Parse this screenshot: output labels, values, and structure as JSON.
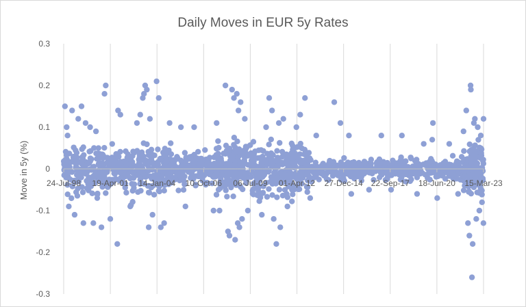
{
  "chart_data": {
    "type": "scatter",
    "title": "Daily Moves in EUR 5y Rates",
    "xlabel": "",
    "ylabel": "Move in 5y (%)",
    "x_tick_labels": [
      "24-Jul-98",
      "19-Apr-01",
      "14-Jan-04",
      "10-Oct-06",
      "06-Jul-09",
      "01-Apr-12",
      "27-Dec-14",
      "22-Sep-17",
      "18-Jun-20",
      "15-Mar-23"
    ],
    "x_tick_dates": [
      "1998-07-24",
      "2001-04-19",
      "2004-01-14",
      "2006-10-10",
      "2009-07-06",
      "2012-04-01",
      "2014-12-27",
      "2017-09-22",
      "2020-06-18",
      "2023-03-15"
    ],
    "xlim": [
      "1998-07-24",
      "2023-03-15"
    ],
    "y_ticks": [
      -0.3,
      -0.2,
      -0.1,
      0,
      0.1,
      0.2,
      0.3
    ],
    "y_tick_labels": [
      "-0.3",
      "-0.2",
      "-0.1",
      "0",
      "0.1",
      "0.2",
      "0.3"
    ],
    "ylim": [
      -0.3,
      0.3
    ],
    "grid": "vertical",
    "legend": "none",
    "marker_color": "#8ea0d5",
    "gridline_color": "#d9d9d9",
    "points": [
      {
        "x": "1998-08-20",
        "y": 0.15
      },
      {
        "x": "1998-09-25",
        "y": 0.1
      },
      {
        "x": "1998-10-15",
        "y": 0.08
      },
      {
        "x": "1998-11-10",
        "y": -0.09
      },
      {
        "x": "1999-01-20",
        "y": 0.14
      },
      {
        "x": "1999-03-15",
        "y": -0.11
      },
      {
        "x": "1999-06-01",
        "y": 0.12
      },
      {
        "x": "1999-08-10",
        "y": 0.15
      },
      {
        "x": "1999-09-20",
        "y": -0.13
      },
      {
        "x": "1999-11-05",
        "y": 0.11
      },
      {
        "x": "2000-02-10",
        "y": 0.1
      },
      {
        "x": "2000-04-20",
        "y": -0.13
      },
      {
        "x": "2000-06-15",
        "y": 0.09
      },
      {
        "x": "2000-10-10",
        "y": -0.14
      },
      {
        "x": "2000-12-15",
        "y": 0.18
      },
      {
        "x": "2001-01-10",
        "y": 0.2
      },
      {
        "x": "2001-04-18",
        "y": -0.12
      },
      {
        "x": "2001-09-15",
        "y": -0.18
      },
      {
        "x": "2001-10-01",
        "y": 0.14
      },
      {
        "x": "2001-11-20",
        "y": 0.13
      },
      {
        "x": "2002-06-20",
        "y": -0.09
      },
      {
        "x": "2002-11-10",
        "y": 0.11
      },
      {
        "x": "2003-01-20",
        "y": 0.13
      },
      {
        "x": "2003-03-15",
        "y": 0.17
      },
      {
        "x": "2003-04-10",
        "y": 0.18
      },
      {
        "x": "2003-05-05",
        "y": 0.2
      },
      {
        "x": "2003-06-10",
        "y": 0.19
      },
      {
        "x": "2003-07-20",
        "y": -0.14
      },
      {
        "x": "2003-08-15",
        "y": 0.12
      },
      {
        "x": "2003-10-10",
        "y": -0.11
      },
      {
        "x": "2004-01-05",
        "y": 0.21
      },
      {
        "x": "2004-02-20",
        "y": 0.17
      },
      {
        "x": "2004-04-05",
        "y": -0.14
      },
      {
        "x": "2004-06-15",
        "y": -0.13
      },
      {
        "x": "2004-10-10",
        "y": 0.11
      },
      {
        "x": "2005-06-10",
        "y": 0.1
      },
      {
        "x": "2005-09-15",
        "y": -0.09
      },
      {
        "x": "2006-03-20",
        "y": 0.1
      },
      {
        "x": "2007-05-10",
        "y": -0.1
      },
      {
        "x": "2007-07-15",
        "y": 0.11
      },
      {
        "x": "2007-09-15",
        "y": -0.1
      },
      {
        "x": "2008-01-20",
        "y": 0.2
      },
      {
        "x": "2008-03-15",
        "y": -0.15
      },
      {
        "x": "2008-04-15",
        "y": -0.16
      },
      {
        "x": "2008-06-10",
        "y": 0.19
      },
      {
        "x": "2008-07-20",
        "y": 0.17
      },
      {
        "x": "2008-08-15",
        "y": -0.17
      },
      {
        "x": "2008-09-20",
        "y": 0.18
      },
      {
        "x": "2008-10-10",
        "y": -0.13
      },
      {
        "x": "2008-10-25",
        "y": 0.14
      },
      {
        "x": "2008-11-15",
        "y": -0.14
      },
      {
        "x": "2008-12-10",
        "y": 0.16
      },
      {
        "x": "2009-01-10",
        "y": -0.12
      },
      {
        "x": "2009-03-10",
        "y": 0.12
      },
      {
        "x": "2009-05-15",
        "y": -0.1
      },
      {
        "x": "2010-03-10",
        "y": -0.11
      },
      {
        "x": "2010-06-10",
        "y": 0.1
      },
      {
        "x": "2010-08-15",
        "y": 0.17
      },
      {
        "x": "2010-10-15",
        "y": 0.14
      },
      {
        "x": "2010-11-20",
        "y": -0.12
      },
      {
        "x": "2011-01-15",
        "y": -0.18
      },
      {
        "x": "2011-03-10",
        "y": 0.11
      },
      {
        "x": "2011-04-10",
        "y": -0.14
      },
      {
        "x": "2011-06-15",
        "y": 0.12
      },
      {
        "x": "2011-09-10",
        "y": -0.09
      },
      {
        "x": "2012-03-20",
        "y": 0.1
      },
      {
        "x": "2012-06-10",
        "y": 0.13
      },
      {
        "x": "2012-09-20",
        "y": 0.17
      },
      {
        "x": "2013-01-10",
        "y": -0.07
      },
      {
        "x": "2013-05-20",
        "y": 0.08
      },
      {
        "x": "2014-06-10",
        "y": 0.16
      },
      {
        "x": "2014-10-20",
        "y": 0.11
      },
      {
        "x": "2015-04-20",
        "y": 0.08
      },
      {
        "x": "2015-06-10",
        "y": -0.06
      },
      {
        "x": "2016-06-25",
        "y": -0.05
      },
      {
        "x": "2017-03-15",
        "y": 0.08
      },
      {
        "x": "2017-10-10",
        "y": -0.05
      },
      {
        "x": "2018-05-30",
        "y": 0.08
      },
      {
        "x": "2019-04-20",
        "y": -0.06
      },
      {
        "x": "2019-09-10",
        "y": 0.06
      },
      {
        "x": "2020-03-10",
        "y": 0.07
      },
      {
        "x": "2020-03-25",
        "y": 0.11
      },
      {
        "x": "2020-06-25",
        "y": -0.07
      },
      {
        "x": "2021-03-10",
        "y": 0.06
      },
      {
        "x": "2021-09-15",
        "y": -0.06
      },
      {
        "x": "2022-01-10",
        "y": 0.09
      },
      {
        "x": "2022-03-10",
        "y": 0.14
      },
      {
        "x": "2022-04-15",
        "y": -0.13
      },
      {
        "x": "2022-05-15",
        "y": -0.16
      },
      {
        "x": "2022-06-10",
        "y": 0.2
      },
      {
        "x": "2022-06-16",
        "y": 0.19
      },
      {
        "x": "2022-07-10",
        "y": -0.26
      },
      {
        "x": "2022-07-25",
        "y": -0.18
      },
      {
        "x": "2022-08-20",
        "y": 0.11
      },
      {
        "x": "2022-09-10",
        "y": 0.12
      },
      {
        "x": "2022-10-10",
        "y": -0.12
      },
      {
        "x": "2022-11-10",
        "y": 0.1
      },
      {
        "x": "2022-12-15",
        "y": -0.1
      },
      {
        "x": "2023-01-15",
        "y": 0.08
      },
      {
        "x": "2023-02-10",
        "y": -0.08
      },
      {
        "x": "2023-03-13",
        "y": -0.13
      },
      {
        "x": "2023-03-15",
        "y": 0.12
      }
    ],
    "point_density": [
      {
        "from": "1998-07-24",
        "to": "2004-12-31",
        "spread": 0.05,
        "count": 450
      },
      {
        "from": "2005-01-01",
        "to": "2007-06-30",
        "spread": 0.035,
        "count": 150
      },
      {
        "from": "2007-07-01",
        "to": "2012-12-31",
        "spread": 0.055,
        "count": 450
      },
      {
        "from": "2013-01-01",
        "to": "2021-12-31",
        "spread": 0.022,
        "count": 420
      },
      {
        "from": "2022-01-01",
        "to": "2023-03-15",
        "spread": 0.05,
        "count": 150
      }
    ]
  }
}
